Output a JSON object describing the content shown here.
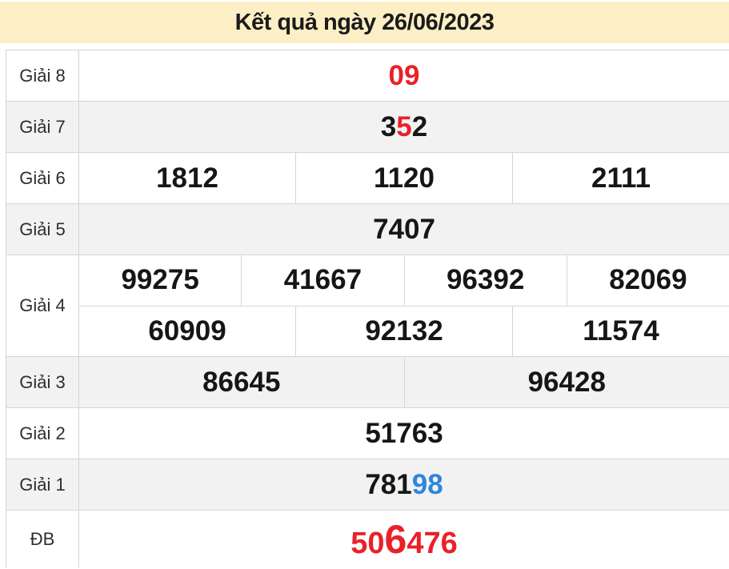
{
  "colors": {
    "header-bg": "#fcefc5",
    "title": "#1b1b1b",
    "row-shade": "#f2f2f2",
    "border": "#d5d5d5",
    "number": "#161616",
    "label": "#2e2e2e",
    "red": "#ea2128",
    "blue": "#2e86de"
  },
  "header": {
    "title": "Kết quả ngày 26/06/2023"
  },
  "table": {
    "rows": [
      {
        "label": "Giải 8",
        "lines": [
          [
            {
              "segs": [
                {
                  "t": "09",
                  "c": "red"
                }
              ]
            }
          ]
        ]
      },
      {
        "label": "Giải 7",
        "lines": [
          [
            {
              "segs": [
                {
                  "t": "3"
                },
                {
                  "t": "5",
                  "c": "red"
                },
                {
                  "t": "2"
                }
              ]
            }
          ]
        ]
      },
      {
        "label": "Giải 6",
        "lines": [
          [
            {
              "segs": [
                {
                  "t": "1812"
                }
              ]
            },
            {
              "segs": [
                {
                  "t": "1120"
                }
              ]
            },
            {
              "segs": [
                {
                  "t": "2111"
                }
              ]
            }
          ]
        ]
      },
      {
        "label": "Giải 5",
        "lines": [
          [
            {
              "segs": [
                {
                  "t": "7407"
                }
              ]
            }
          ]
        ]
      },
      {
        "label": "Giải 4",
        "lines": [
          [
            {
              "segs": [
                {
                  "t": "99275"
                }
              ]
            },
            {
              "segs": [
                {
                  "t": "41667"
                }
              ]
            },
            {
              "segs": [
                {
                  "t": "96392"
                }
              ]
            },
            {
              "segs": [
                {
                  "t": "82069"
                }
              ]
            }
          ],
          [
            {
              "segs": [
                {
                  "t": "60909"
                }
              ]
            },
            {
              "segs": [
                {
                  "t": "92132"
                }
              ]
            },
            {
              "segs": [
                {
                  "t": "11574"
                }
              ]
            }
          ]
        ]
      },
      {
        "label": "Giải 3",
        "lines": [
          [
            {
              "segs": [
                {
                  "t": "86645"
                }
              ]
            },
            {
              "segs": [
                {
                  "t": "96428"
                }
              ]
            }
          ]
        ]
      },
      {
        "label": "Giải 2",
        "lines": [
          [
            {
              "segs": [
                {
                  "t": "51763"
                }
              ]
            }
          ]
        ]
      },
      {
        "label": "Giải 1",
        "lines": [
          [
            {
              "segs": [
                {
                  "t": "781"
                },
                {
                  "t": "98",
                  "c": "blue"
                }
              ]
            }
          ]
        ]
      },
      {
        "label": "ĐB",
        "lines": [
          [
            {
              "segs": [
                {
                  "t": "50",
                  "c": "red"
                },
                {
                  "t": "6",
                  "c": "red-big"
                },
                {
                  "t": "476",
                  "c": "red"
                }
              ]
            }
          ]
        ]
      }
    ]
  }
}
